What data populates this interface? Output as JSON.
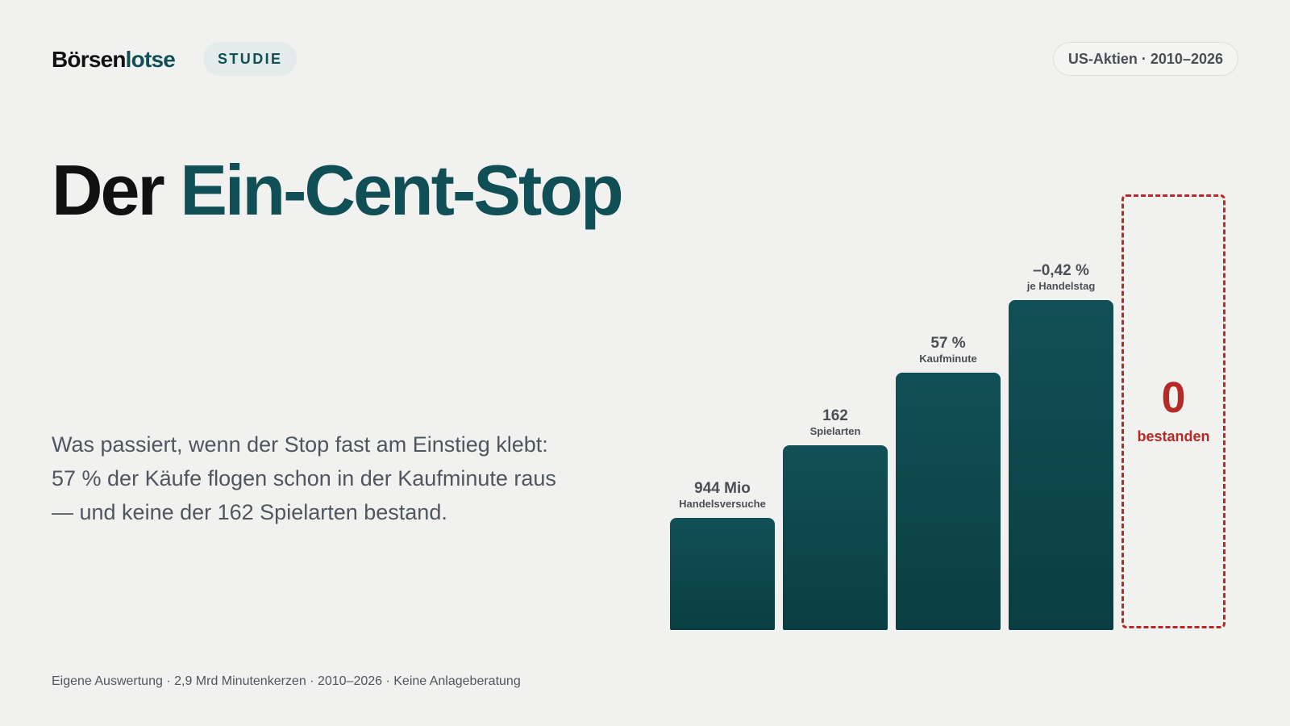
{
  "header": {
    "logo_part1": "Börsen",
    "logo_part2": "lotse",
    "tag": "STUDIE",
    "range": "US-Aktien · 2010–2026"
  },
  "title": {
    "part1": "Der ",
    "part2": "Ein-Cent-Stop"
  },
  "lead": "Was passiert, wenn der Stop fast am Einstieg klebt: 57 % der Käufe flogen schon in der Kaufminute raus — und keine der 162 Spielarten bestand.",
  "footer": "Eigene Auswertung · 2,9 Mrd Minutenkerzen · 2010–2026 · Keine Anlageberatung",
  "colors": {
    "accent": "#0f4f55",
    "alert": "#b52a26",
    "background": "#f1f1ef"
  },
  "chart_data": {
    "type": "bar",
    "note_style": "illustrative staircase",
    "bars": [
      {
        "value_label": "944 Mio",
        "sub_label": "Handelsversuche",
        "relative_height": 1
      },
      {
        "value_label": "162",
        "sub_label": "Spielarten",
        "relative_height": 2
      },
      {
        "value_label": "57 %",
        "sub_label": "Kaufminute",
        "relative_height": 3
      },
      {
        "value_label": "–0,42 %",
        "sub_label": "je Handelstag",
        "relative_height": 4
      }
    ],
    "outcome": {
      "value": "0",
      "label": "bestanden"
    }
  }
}
